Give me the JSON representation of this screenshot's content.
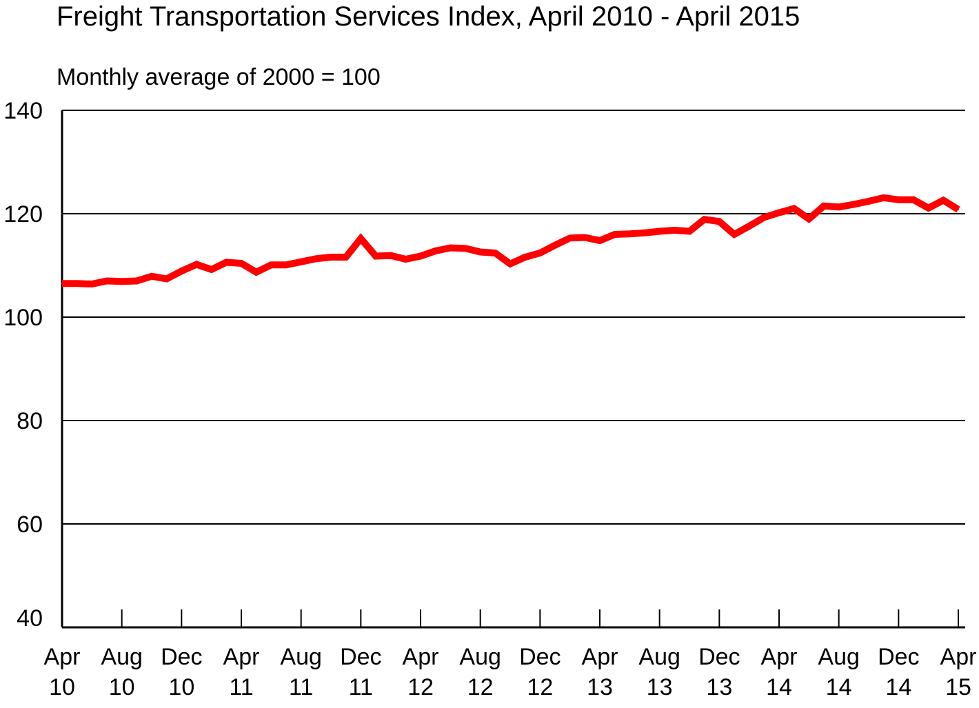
{
  "chart_data": {
    "type": "line",
    "title": "Freight Transportation Services Index, April 2010 - April 2015",
    "subtitle": "Monthly average of 2000 = 100",
    "xlabel": "",
    "ylabel": "",
    "ylim": [
      40,
      140
    ],
    "yticks": [
      "40",
      "60",
      "80",
      "100",
      "120",
      "140"
    ],
    "y_tick_values": [
      40,
      60,
      80,
      100,
      120,
      140
    ],
    "x_tick_labels": [
      [
        "Apr",
        "10"
      ],
      [
        "Aug",
        "10"
      ],
      [
        "Dec",
        "10"
      ],
      [
        "Apr",
        "11"
      ],
      [
        "Aug",
        "11"
      ],
      [
        "Dec",
        "11"
      ],
      [
        "Apr",
        "12"
      ],
      [
        "Aug",
        "12"
      ],
      [
        "Dec",
        "12"
      ],
      [
        "Apr",
        "13"
      ],
      [
        "Aug",
        "13"
      ],
      [
        "Dec",
        "13"
      ],
      [
        "Apr",
        "14"
      ],
      [
        "Aug",
        "14"
      ],
      [
        "Dec",
        "14"
      ],
      [
        "Apr",
        "15"
      ]
    ],
    "x_tick_months": [
      "2010-04",
      "2010-08",
      "2010-12",
      "2011-04",
      "2011-08",
      "2011-12",
      "2012-04",
      "2012-08",
      "2012-12",
      "2013-04",
      "2013-08",
      "2013-12",
      "2014-04",
      "2014-08",
      "2014-12",
      "2015-04"
    ],
    "grid": "horizontal",
    "series": [
      {
        "color": "#ff0000",
        "x": [
          "2010-04",
          "2010-05",
          "2010-06",
          "2010-07",
          "2010-08",
          "2010-09",
          "2010-10",
          "2010-11",
          "2010-12",
          "2011-01",
          "2011-02",
          "2011-03",
          "2011-04",
          "2011-05",
          "2011-06",
          "2011-07",
          "2011-08",
          "2011-09",
          "2011-10",
          "2011-11",
          "2011-12",
          "2012-01",
          "2012-02",
          "2012-03",
          "2012-04",
          "2012-05",
          "2012-06",
          "2012-07",
          "2012-08",
          "2012-09",
          "2012-10",
          "2012-11",
          "2012-12",
          "2013-01",
          "2013-02",
          "2013-03",
          "2013-04",
          "2013-05",
          "2013-06",
          "2013-07",
          "2013-08",
          "2013-09",
          "2013-10",
          "2013-11",
          "2013-12",
          "2014-01",
          "2014-02",
          "2014-03",
          "2014-04",
          "2014-05",
          "2014-06",
          "2014-07",
          "2014-08",
          "2014-09",
          "2014-10",
          "2014-11",
          "2014-12",
          "2015-01",
          "2015-02",
          "2015-03",
          "2015-04"
        ],
        "values": [
          106.5,
          106.5,
          106.4,
          107.0,
          106.9,
          107.0,
          107.9,
          107.4,
          108.9,
          110.2,
          109.2,
          110.6,
          110.4,
          108.7,
          110.1,
          110.1,
          110.7,
          111.3,
          111.6,
          111.6,
          115.2,
          111.8,
          111.9,
          111.2,
          111.8,
          112.8,
          113.4,
          113.3,
          112.6,
          112.4,
          110.3,
          111.6,
          112.4,
          113.9,
          115.3,
          115.4,
          114.8,
          116.0,
          116.1,
          116.3,
          116.6,
          116.8,
          116.6,
          118.9,
          118.5,
          116.0,
          117.6,
          119.3,
          120.2,
          121.0,
          119.0,
          121.5,
          121.3,
          121.8,
          122.4,
          123.1,
          122.7,
          122.7,
          121.1,
          122.6,
          120.8
        ]
      }
    ]
  }
}
